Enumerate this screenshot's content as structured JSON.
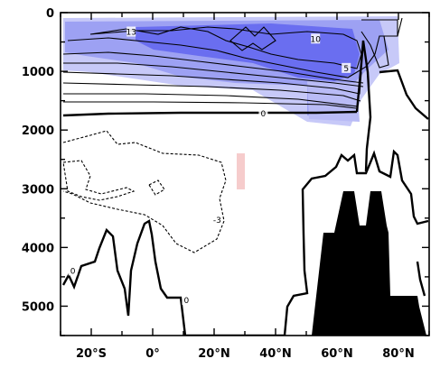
{
  "chart_data": {
    "type": "contour",
    "title": "",
    "xlabel": "",
    "ylabel": "",
    "xlim": [
      -30,
      90
    ],
    "ylim": [
      5500,
      0
    ],
    "x_ticks": [
      -20,
      0,
      20,
      40,
      60,
      80
    ],
    "x_tick_labels": [
      "20°S",
      "0°",
      "20°N",
      "40°N",
      "60°N",
      "80°N"
    ],
    "y_ticks": [
      0,
      1000,
      2000,
      3000,
      4000,
      5000
    ],
    "y_tick_labels": [
      "0",
      "1000",
      "2000",
      "3000",
      "4000",
      "5000"
    ],
    "contour_labels": [
      {
        "text": "13",
        "x": -7,
        "depth": 330
      },
      {
        "text": "10",
        "x": 53,
        "depth": 450
      },
      {
        "text": "5",
        "x": 63,
        "depth": 950
      },
      {
        "text": "0",
        "x": 36,
        "depth": 1720
      },
      {
        "text": "-3",
        "x": 21,
        "depth": 3530
      },
      {
        "text": "0",
        "x": -26,
        "depth": 4400
      },
      {
        "text": "0",
        "x": 11,
        "depth": 4900
      }
    ],
    "colors": {
      "positive_fill": "#6a6ef0",
      "positive_fill_light": "#c2c4f7",
      "negative_fill": "#f6cccc",
      "topography": "#000000"
    }
  }
}
